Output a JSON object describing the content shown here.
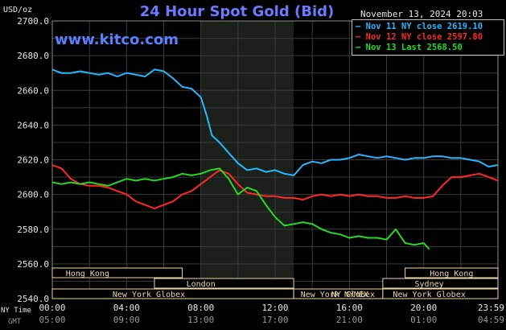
{
  "header": {
    "title": "24 Hour Spot Gold (Bid)",
    "source": "www.kitco.com",
    "timestamp": "November 13, 2024 20:03",
    "unit": "USD/oz"
  },
  "legend": [
    {
      "label": "Nov 11 NY close 2619.10",
      "color": "#27b7ff"
    },
    {
      "label": "Nov 12 NY close 2597.80",
      "color": "#ff2828"
    },
    {
      "label": "Nov 13 Last 2568.50",
      "color": "#27d927"
    }
  ],
  "colors": {
    "background": "#000000",
    "grid": "#3a3a3a",
    "highlight_band": "#1b201b",
    "session_box": "#e8d7a8"
  },
  "axis": {
    "y_ticks": [
      "2700.0",
      "2680.0",
      "2660.0",
      "2640.0",
      "2620.0",
      "2600.0",
      "2580.0",
      "2560.0",
      "2540.0"
    ],
    "x_row_labels": [
      "NY Time",
      "GMT"
    ],
    "ny_ticks": [
      "00:00",
      "04:00",
      "08:00",
      "12:00",
      "16:00",
      "20:00",
      "23:59"
    ],
    "gmt_ticks": [
      "05:00",
      "09:00",
      "13:00",
      "17:00",
      "21:00",
      "01:00",
      "04:59"
    ]
  },
  "sessions": [
    {
      "label": "Hong Kong"
    },
    {
      "label": "London"
    },
    {
      "label": "New York Globex"
    },
    {
      "label": "New York NYMEX"
    },
    {
      "label": "NY Globex"
    },
    {
      "label": "Hong Kong"
    },
    {
      "label": "Sydney"
    },
    {
      "label": "New York Globex"
    }
  ],
  "chart_data": {
    "type": "line",
    "title": "24 Hour Spot Gold (Bid)",
    "ylabel": "USD/oz",
    "x_unit": "hours (NY time)",
    "xlim": [
      0,
      24
    ],
    "ylim": [
      2540,
      2700
    ],
    "grid": true,
    "legend_position": "top-right",
    "highlight_range_hours": [
      8,
      13
    ],
    "series": [
      {
        "name": "Nov 11 NY close 2619.10",
        "x": [
          0,
          0.5,
          1,
          1.5,
          2,
          2.5,
          3,
          3.5,
          4,
          4.5,
          5,
          5.5,
          6,
          6.5,
          7,
          7.5,
          8,
          8.3,
          8.6,
          9,
          9.5,
          10,
          10.5,
          11,
          11.5,
          12,
          12.5,
          13,
          13.5,
          14,
          14.5,
          15,
          15.5,
          16,
          16.5,
          17,
          17.5,
          18,
          18.5,
          19,
          19.5,
          20,
          20.5,
          21,
          21.5,
          22,
          22.5,
          23,
          23.5,
          24
        ],
        "values": [
          2672,
          2670,
          2670,
          2671,
          2670,
          2669,
          2670,
          2668,
          2670,
          2669,
          2668,
          2672,
          2671,
          2667,
          2662,
          2661,
          2656,
          2646,
          2634,
          2630,
          2624,
          2618,
          2614,
          2615,
          2613,
          2614,
          2612,
          2611,
          2617,
          2619,
          2618,
          2620,
          2620,
          2621,
          2623,
          2622,
          2621,
          2622,
          2621,
          2620,
          2621,
          2621,
          2622,
          2622,
          2621,
          2621,
          2620,
          2619,
          2616,
          2617
        ]
      },
      {
        "name": "Nov 12 NY close 2597.80",
        "x": [
          0,
          0.5,
          1,
          1.5,
          2,
          2.5,
          3,
          3.5,
          4,
          4.5,
          5,
          5.5,
          6,
          6.5,
          7,
          7.5,
          8,
          8.5,
          9,
          9.5,
          10,
          10.5,
          11,
          11.5,
          12,
          12.5,
          13,
          13.5,
          14,
          14.5,
          15,
          15.5,
          16,
          16.5,
          17,
          17.5,
          18,
          18.5,
          19,
          19.5,
          20,
          20.5,
          21,
          21.5,
          22,
          22.5,
          23,
          23.5,
          24
        ],
        "values": [
          2617,
          2615,
          2609,
          2606,
          2605,
          2605,
          2604,
          2602,
          2600,
          2596,
          2594,
          2592,
          2594,
          2596,
          2600,
          2602,
          2606,
          2610,
          2614,
          2612,
          2606,
          2601,
          2600,
          2599,
          2599,
          2598,
          2598,
          2597,
          2599,
          2600,
          2599,
          2600,
          2599,
          2600,
          2599,
          2599,
          2598,
          2598,
          2599,
          2598,
          2598,
          2599,
          2605,
          2610,
          2610,
          2611,
          2612,
          2610,
          2608
        ]
      },
      {
        "name": "Nov 13 Last 2568.50",
        "x": [
          0,
          0.5,
          1,
          1.5,
          2,
          2.5,
          3,
          3.5,
          4,
          4.5,
          5,
          5.5,
          6,
          6.5,
          7,
          7.5,
          8,
          8.5,
          9,
          9.5,
          10,
          10.5,
          11,
          11.5,
          12,
          12.5,
          13,
          13.5,
          14,
          14.5,
          15,
          15.5,
          16,
          16.5,
          17,
          17.5,
          18,
          18.5,
          19,
          19.5,
          20,
          20.3
        ],
        "values": [
          2607,
          2606,
          2607,
          2606,
          2607,
          2606,
          2605,
          2607,
          2609,
          2608,
          2609,
          2608,
          2609,
          2610,
          2612,
          2611,
          2612,
          2614,
          2615,
          2609,
          2600,
          2604,
          2602,
          2594,
          2587,
          2582,
          2583,
          2584,
          2583,
          2580,
          2578,
          2577,
          2575,
          2576,
          2575,
          2575,
          2574,
          2580,
          2572,
          2571,
          2572,
          2568.5
        ]
      }
    ]
  }
}
